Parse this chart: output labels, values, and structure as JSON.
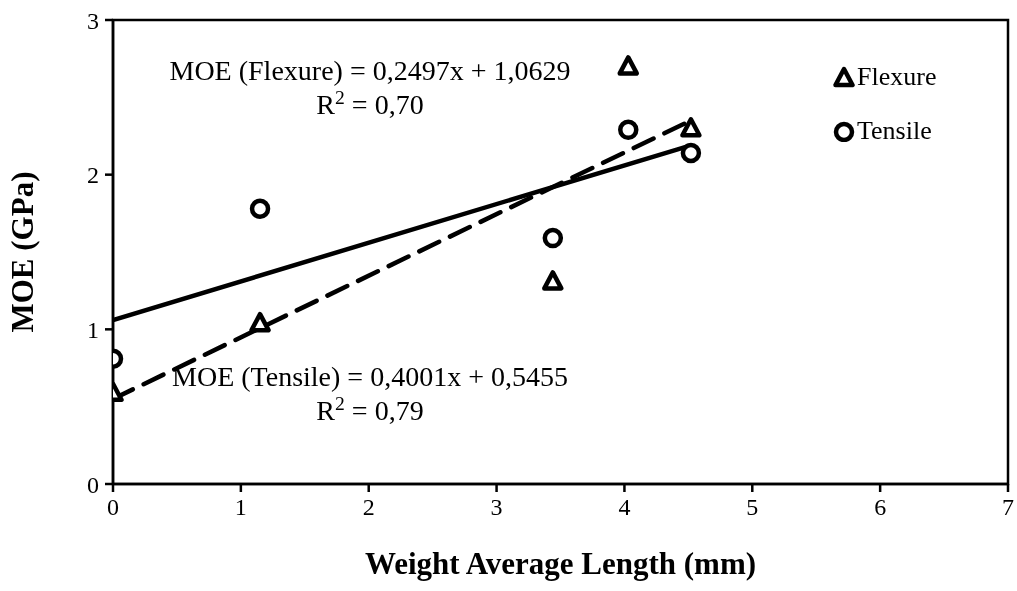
{
  "chart_data": {
    "type": "scatter",
    "xlabel": "Weight Average Length (mm)",
    "ylabel": "MOE (GPa)",
    "xlim": [
      0,
      7
    ],
    "xticks": [
      0,
      1,
      2,
      3,
      4,
      5,
      6,
      7
    ],
    "ylim": [
      0,
      3
    ],
    "yticks": [
      0,
      1,
      2,
      3
    ],
    "grid": false,
    "legend": "top right",
    "series": [
      {
        "name": "Flexure",
        "marker": "triangle",
        "color": "#000000",
        "x": [
          0,
          1.15,
          3.44,
          4.03,
          4.52
        ],
        "values": [
          0.59,
          1.04,
          1.31,
          2.7,
          2.3
        ]
      },
      {
        "name": "Tensile",
        "marker": "circle",
        "color": "#000000",
        "x": [
          0,
          1.15,
          3.44,
          4.03,
          4.52
        ],
        "values": [
          0.81,
          1.78,
          1.59,
          2.29,
          2.14
        ]
      },
      {
        "type": "line",
        "marker": "none",
        "line_style": "solid",
        "color": "#000000",
        "x": [
          0,
          4.52
        ],
        "values": [
          1.06,
          2.19
        ]
      },
      {
        "type": "line",
        "marker": "none",
        "line_style": "dashed",
        "color": "#000000",
        "x": [
          0,
          4.52
        ],
        "values": [
          0.55,
          2.35
        ]
      }
    ],
    "annotations": [
      "MOE (Flexure) = 0,2497x + 1,0629",
      "R$^{2}$ = 0,70",
      "MOE (Tensile) = 0,4001x + 0,5455",
      "R$^{2}$ = 0,79"
    ]
  }
}
